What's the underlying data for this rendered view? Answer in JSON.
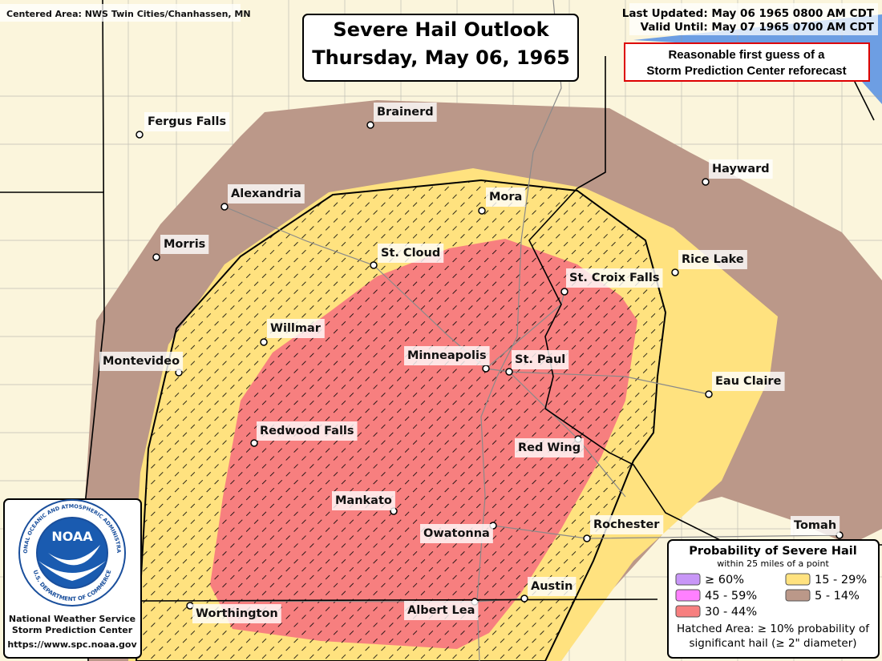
{
  "header": {
    "centered_area": "Centered Area: NWS Twin Cities/Chanhassen, MN",
    "title_line1": "Severe Hail Outlook",
    "title_line2": "Thursday, May 06, 1965",
    "last_updated": "Last Updated: May 06 1965 0800 AM CDT",
    "valid_until": "Valid Until: May 07 1965 0700 AM CDT",
    "note_line1": "Reasonable first guess of a",
    "note_line2": "Storm Prediction Center reforecast"
  },
  "cities": [
    "Fergus Falls",
    "Brainerd",
    "Alexandria",
    "Hayward",
    "Mora",
    "Morris",
    "St. Cloud",
    "Rice Lake",
    "St. Croix Falls",
    "Willmar",
    "Montevideo",
    "Minneapolis",
    "St. Paul",
    "Eau Claire",
    "Redwood Falls",
    "Red Wing",
    "Mankato",
    "Owatonna",
    "Rochester",
    "Tomah",
    "Austin",
    "Albert Lea",
    "Worthington"
  ],
  "legend": {
    "title": "Probability of Severe Hail",
    "subtitle": "within 25 miles of a point",
    "items": [
      {
        "label": "≥ 60%",
        "color": "#c896f7"
      },
      {
        "label": "45 - 59%",
        "color": "#ff80ff"
      },
      {
        "label": "30 - 44%",
        "color": "#f77f7f"
      },
      {
        "label": "15 - 29%",
        "color": "#ffe27f"
      },
      {
        "label": "5 - 14%",
        "color": "#bb9889"
      }
    ],
    "hatch_line1": "Hatched Area: ≥ 10% probability of",
    "hatch_line2": "significant hail (≥ 2\" diameter)"
  },
  "noaa": {
    "logo": "NOAA",
    "ring_top": "NATIONAL OCEANIC AND ATMOSPHERIC ADMINISTRATION",
    "ring_bottom": "U.S. DEPARTMENT OF COMMERCE",
    "line1": "National Weather Service",
    "line2": "Storm Prediction Center",
    "url": "https://www.spc.noaa.gov"
  }
}
